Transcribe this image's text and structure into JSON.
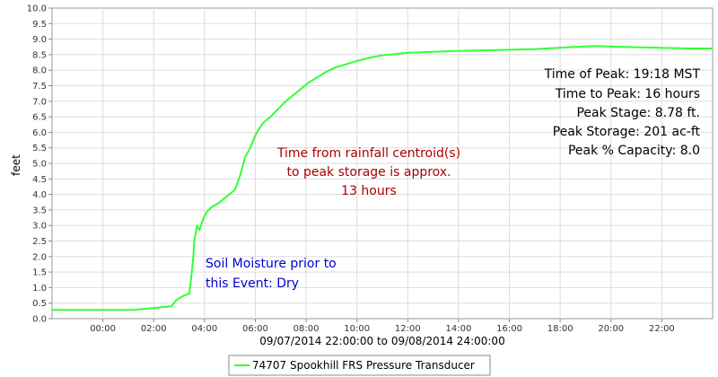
{
  "chart_data": {
    "type": "line",
    "ylabel": "feet",
    "xlabel": "09/07/2014 22:00:00 to 09/08/2014 24:00:00",
    "ylim": [
      0.0,
      10.0
    ],
    "xlim": [
      -2.0,
      24.0
    ],
    "x_unit": "hour of day (09/08/2014)",
    "yticks": [
      "0.0",
      "0.5",
      "1.0",
      "1.5",
      "2.0",
      "2.5",
      "3.0",
      "3.5",
      "4.0",
      "4.5",
      "5.0",
      "5.5",
      "6.0",
      "6.5",
      "7.0",
      "7.5",
      "8.0",
      "8.5",
      "9.0",
      "9.5",
      "10.0"
    ],
    "xticks": [
      {
        "x": 0,
        "label": "00:00"
      },
      {
        "x": 2,
        "label": "02:00"
      },
      {
        "x": 4,
        "label": "04:00"
      },
      {
        "x": 6,
        "label": "06:00"
      },
      {
        "x": 8,
        "label": "08:00"
      },
      {
        "x": 10,
        "label": "10:00"
      },
      {
        "x": 12,
        "label": "12:00"
      },
      {
        "x": 14,
        "label": "14:00"
      },
      {
        "x": 16,
        "label": "16:00"
      },
      {
        "x": 18,
        "label": "18:00"
      },
      {
        "x": 20,
        "label": "20:00"
      },
      {
        "x": 22,
        "label": "22:00"
      }
    ],
    "grid": true,
    "legend_position": "bottom",
    "series": [
      {
        "name": "74707 Spookhill FRS Pressure Transducer",
        "color": "#33ff33",
        "x": [
          -2.0,
          1.2,
          2.7,
          2.9,
          3.2,
          3.4,
          3.5,
          3.55,
          3.6,
          3.7,
          3.8,
          3.9,
          3.95,
          4.0,
          4.1,
          4.3,
          4.6,
          4.9,
          5.2,
          5.4,
          5.6,
          5.8,
          6.0,
          6.1,
          6.3,
          6.6,
          6.9,
          7.2,
          7.5,
          7.8,
          8.1,
          8.4,
          8.8,
          9.2,
          9.6,
          10.0,
          10.5,
          11.0,
          11.5,
          12.0,
          14.0,
          17.0,
          19.3,
          21.0,
          23.0,
          24.0
        ],
        "y": [
          0.28,
          0.28,
          0.4,
          0.6,
          0.75,
          0.8,
          1.5,
          1.9,
          2.5,
          3.0,
          2.85,
          3.1,
          3.2,
          3.3,
          3.45,
          3.6,
          3.75,
          3.95,
          4.15,
          4.6,
          5.2,
          5.5,
          5.9,
          6.05,
          6.3,
          6.5,
          6.75,
          7.0,
          7.2,
          7.4,
          7.6,
          7.75,
          7.95,
          8.1,
          8.2,
          8.3,
          8.4,
          8.48,
          8.52,
          8.56,
          8.62,
          8.68,
          8.78,
          8.74,
          8.7,
          8.7
        ]
      }
    ],
    "annotations": [
      {
        "id": "peak-info",
        "color": "#000000",
        "align": "right",
        "lines": [
          "Time of Peak: 19:18 MST",
          "Time to Peak: 16 hours",
          "Peak Stage: 8.78 ft.",
          "Peak Storage: 201 ac-ft",
          "Peak % Capacity: 8.0"
        ]
      },
      {
        "id": "centroid-note",
        "color": "#aa0000",
        "align": "center",
        "lines": [
          "Time from rainfall centroid(s)",
          "to peak storage is approx.",
          "13 hours"
        ]
      },
      {
        "id": "soil-note",
        "color": "#0000cc",
        "align": "left",
        "lines": [
          "Soil Moisture prior to",
          "this Event: Dry"
        ]
      }
    ]
  }
}
